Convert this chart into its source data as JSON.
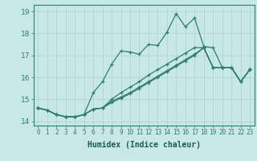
{
  "xlabel": "Humidex (Indice chaleur)",
  "xlim": [
    -0.5,
    23.5
  ],
  "ylim": [
    13.8,
    19.3
  ],
  "yticks": [
    14,
    15,
    16,
    17,
    18,
    19
  ],
  "xticks": [
    0,
    1,
    2,
    3,
    4,
    5,
    6,
    7,
    8,
    9,
    10,
    11,
    12,
    13,
    14,
    15,
    16,
    17,
    18,
    19,
    20,
    21,
    22,
    23
  ],
  "background_color": "#c8e8e8",
  "line_color": "#2e7d6e",
  "grid_color": "#b0d0d0",
  "series": [
    [
      14.6,
      14.5,
      14.3,
      14.2,
      14.2,
      14.3,
      15.3,
      15.8,
      16.6,
      17.2,
      17.15,
      17.05,
      17.5,
      17.45,
      18.05,
      18.9,
      18.3,
      18.7,
      17.4,
      17.35,
      16.45,
      16.45,
      15.8,
      16.35
    ],
    [
      14.6,
      14.5,
      14.3,
      14.2,
      14.2,
      14.3,
      14.55,
      14.6,
      15.0,
      15.3,
      15.55,
      15.8,
      16.1,
      16.35,
      16.6,
      16.85,
      17.1,
      17.35,
      17.35,
      16.45,
      16.45,
      16.45,
      15.8,
      16.35
    ],
    [
      14.6,
      14.5,
      14.3,
      14.2,
      14.2,
      14.3,
      14.55,
      14.6,
      14.9,
      15.1,
      15.3,
      15.55,
      15.8,
      16.05,
      16.3,
      16.55,
      16.8,
      17.05,
      17.35,
      16.45,
      16.45,
      16.45,
      15.8,
      16.35
    ],
    [
      14.6,
      14.5,
      14.3,
      14.2,
      14.2,
      14.3,
      14.55,
      14.6,
      14.85,
      15.05,
      15.25,
      15.5,
      15.75,
      16.0,
      16.25,
      16.5,
      16.75,
      17.0,
      17.35,
      16.45,
      16.45,
      16.45,
      15.8,
      16.35
    ]
  ]
}
